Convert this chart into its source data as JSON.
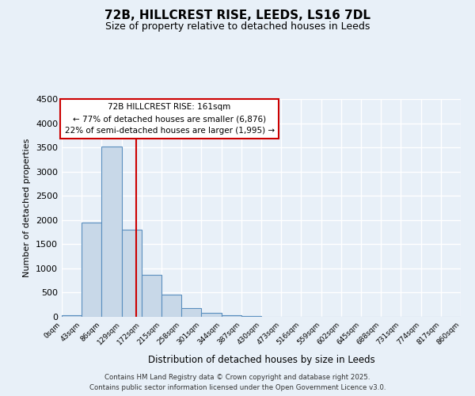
{
  "title": "72B, HILLCREST RISE, LEEDS, LS16 7DL",
  "subtitle": "Size of property relative to detached houses in Leeds",
  "xlabel": "Distribution of detached houses by size in Leeds",
  "ylabel": "Number of detached properties",
  "bar_values": [
    30,
    1950,
    3520,
    1800,
    860,
    460,
    175,
    90,
    30,
    10,
    5,
    0,
    0,
    0,
    0,
    0,
    0,
    0,
    0,
    0
  ],
  "bin_labels": [
    "0sqm",
    "43sqm",
    "86sqm",
    "129sqm",
    "172sqm",
    "215sqm",
    "258sqm",
    "301sqm",
    "344sqm",
    "387sqm",
    "430sqm",
    "473sqm",
    "516sqm",
    "559sqm",
    "602sqm",
    "645sqm",
    "688sqm",
    "731sqm",
    "774sqm",
    "817sqm",
    "860sqm"
  ],
  "bar_color": "#c8d8e8",
  "bar_edge_color": "#5a8fbf",
  "background_color": "#e8f0f8",
  "grid_color": "#ffffff",
  "red_line_x": 3.72,
  "annotation_line1": "72B HILLCREST RISE: 161sqm",
  "annotation_line2": "← 77% of detached houses are smaller (6,876)",
  "annotation_line3": "22% of semi-detached houses are larger (1,995) →",
  "annotation_box_color": "#ffffff",
  "annotation_box_edge": "#cc0000",
  "ylim": [
    0,
    4500
  ],
  "yticks": [
    0,
    500,
    1000,
    1500,
    2000,
    2500,
    3000,
    3500,
    4000,
    4500
  ],
  "footer_line1": "Contains HM Land Registry data © Crown copyright and database right 2025.",
  "footer_line2": "Contains public sector information licensed under the Open Government Licence v3.0."
}
